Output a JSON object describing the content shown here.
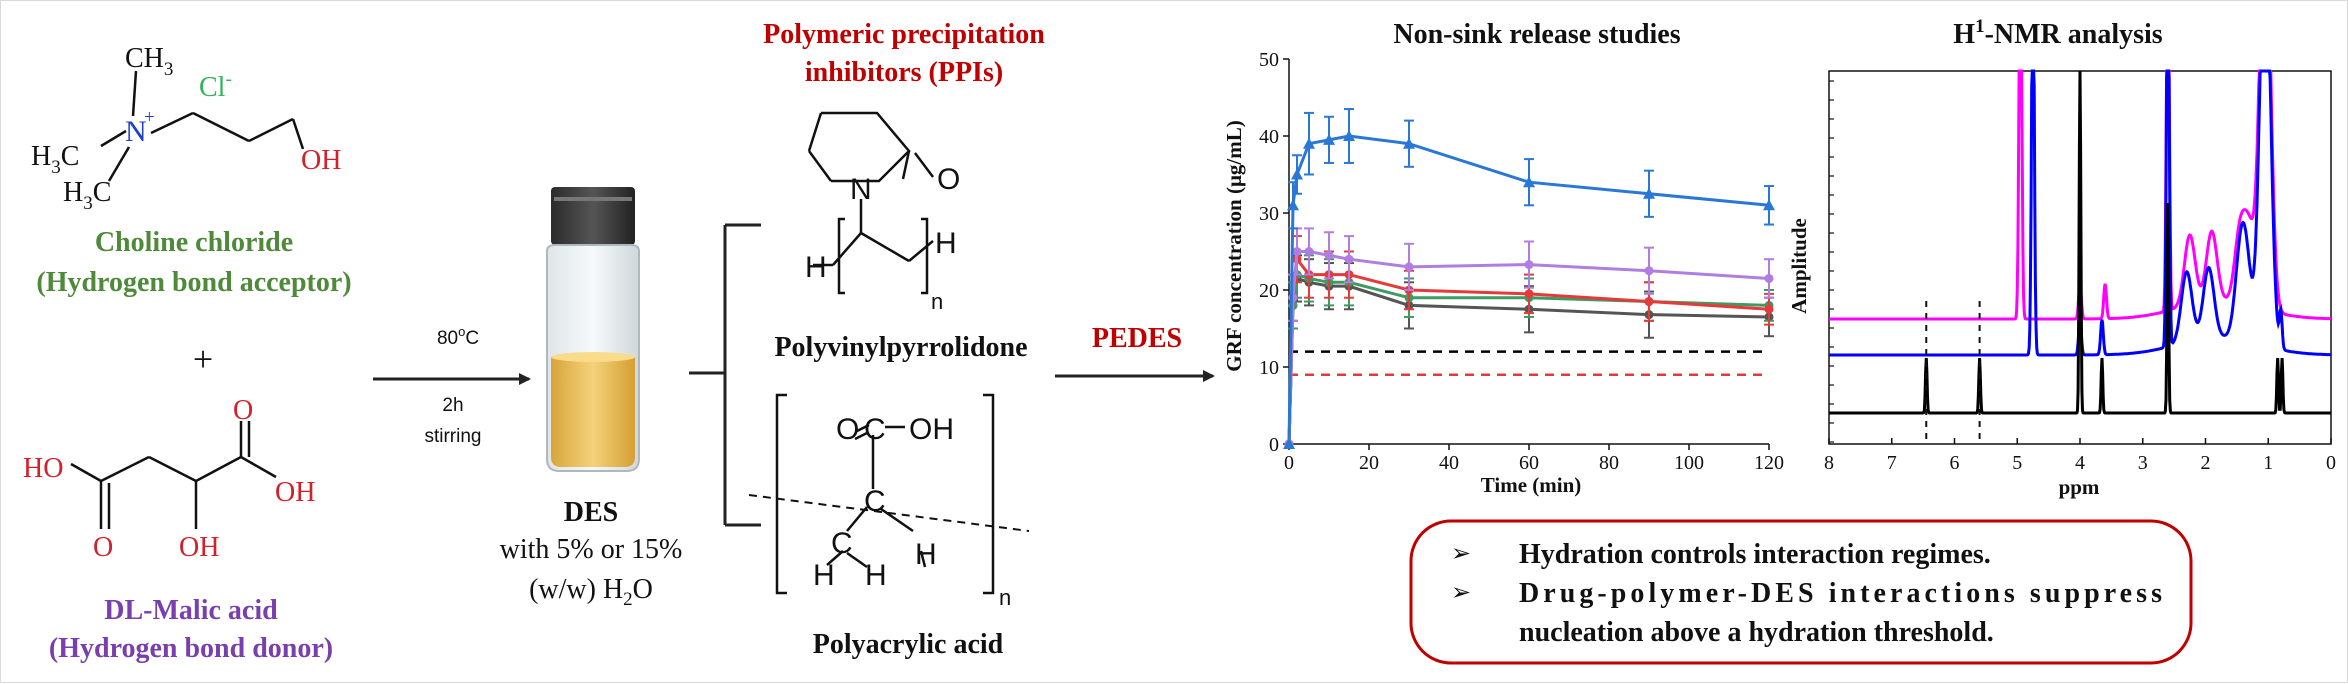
{
  "choline": {
    "ch3_top": "CH",
    "ch3_top_sub": "3",
    "n_plus": "N",
    "n_charge": "+",
    "h3c_left": "H",
    "h3c_left_sub": "3",
    "h3c_left_c": "C",
    "h3c_bottom": "H",
    "h3c_bottom_sub": "3",
    "h3c_bottom_c": "C",
    "oh": "OH",
    "cl": "Cl",
    "cl_charge": "-",
    "name": "Choline chloride",
    "role": "(Hydrogen bond acceptor)"
  },
  "plus": "+",
  "malic": {
    "ho_left": "HO",
    "o1": "O",
    "o2": "O",
    "oh_right": "OH",
    "oh_bottom": "OH",
    "name": "DL-Malic acid",
    "role": "(Hydrogen bond donor)"
  },
  "step1": {
    "temp": "80",
    "temp_sup": "o",
    "temp_unit": "C",
    "time": "2h",
    "action": "stirring"
  },
  "des": {
    "label": "DES",
    "line2": "with 5% or 15%",
    "line3a": "(w/w) H",
    "line3_sub": "2",
    "line3b": "O"
  },
  "ppi": {
    "title_line1": "Polymeric precipitation",
    "title_line2": "inhibitors (PPIs)",
    "pvp_o": "O",
    "pvp_n": "N",
    "pvp_h_left": "H",
    "pvp_h_right": "H",
    "pvp_n_sub": "n",
    "pvp_name": "Polyvinylpyrrolidone",
    "paa_o": "O",
    "paa_oh": "OH",
    "paa_c1": "C",
    "paa_c2": "C",
    "paa_c3": "C",
    "paa_h1": "H",
    "paa_h2": "H",
    "paa_h3": "H",
    "paa_n_sub": "n",
    "paa_name": "Polyacrylic acid"
  },
  "pedes": "PEDES",
  "release_chart": {
    "title": "Non-sink release studies",
    "ylabel": "GRF concentration (μg/mL)",
    "xlabel": "Time (min)"
  },
  "nmr_chart": {
    "title_h": "H",
    "title_sup": "1",
    "title_rest": "-NMR analysis",
    "ylabel": "Amplitude",
    "xlabel": "ppm"
  },
  "conclusions": {
    "bullet": "➢",
    "item1": "Hydration controls interaction regimes.",
    "item2_line1": "Drug-polymer-DES interactions suppress",
    "item2_line2": "nucleation above a hydration threshold."
  },
  "colors": {
    "green": "#4e8a3a",
    "purple": "#7a3fae",
    "red": "#c00000",
    "blue_n": "#1d3fd0",
    "green_cl": "#33b35a",
    "o_red": "#d4202a"
  },
  "chart_data": [
    {
      "type": "line",
      "title": "Non-sink release studies",
      "xlabel": "Time (min)",
      "ylabel": "GRF concentration (μg/mL)",
      "xlim": [
        0,
        120
      ],
      "ylim": [
        0,
        50
      ],
      "xticks": [
        0,
        20,
        40,
        60,
        80,
        100,
        120
      ],
      "yticks": [
        0,
        10,
        20,
        30,
        40,
        50
      ],
      "grid": false,
      "series": [
        {
          "color": "#2a78d6",
          "marker": "triangle",
          "x": [
            0,
            1,
            2,
            5,
            10,
            15,
            30,
            60,
            90,
            120
          ],
          "y": [
            0,
            31,
            35,
            39,
            39.5,
            40,
            39,
            34,
            32.5,
            31
          ],
          "err": [
            0,
            3,
            2.5,
            4,
            3,
            3.5,
            3,
            3,
            3,
            2.5
          ]
        },
        {
          "color": "#b07ee0",
          "marker": "circle",
          "x": [
            0,
            1,
            2,
            5,
            10,
            15,
            30,
            60,
            90,
            120
          ],
          "y": [
            0,
            19,
            25,
            25,
            24.5,
            24,
            23,
            23.3,
            22.5,
            21.5
          ],
          "err": [
            0,
            3,
            3,
            3,
            3,
            3,
            3,
            3,
            3,
            2.5
          ]
        },
        {
          "color": "#e53a3a",
          "marker": "circle",
          "x": [
            0,
            1,
            2,
            5,
            10,
            15,
            30,
            60,
            90,
            120
          ],
          "y": [
            0,
            19,
            24,
            22,
            22,
            22,
            20,
            19.5,
            18.5,
            17.5
          ],
          "err": [
            0,
            3,
            3,
            3,
            3,
            3,
            2.5,
            2.5,
            2.5,
            2
          ]
        },
        {
          "color": "#3e9a62",
          "marker": "circle",
          "x": [
            0,
            1,
            2,
            5,
            10,
            15,
            30,
            60,
            90,
            120
          ],
          "y": [
            0,
            18,
            22,
            21.5,
            21,
            21,
            19,
            19,
            18.5,
            18
          ],
          "err": [
            0,
            3,
            3,
            3,
            3,
            3,
            2.5,
            2.5,
            2.5,
            2
          ]
        },
        {
          "color": "#555555",
          "marker": "circle",
          "x": [
            0,
            1,
            2,
            5,
            10,
            15,
            30,
            60,
            90,
            120
          ],
          "y": [
            0,
            18,
            21.5,
            21,
            20.5,
            20.5,
            18,
            17.5,
            16.8,
            16.5
          ],
          "err": [
            0,
            3,
            3,
            3,
            3,
            3,
            3,
            3,
            3,
            2.5
          ]
        }
      ],
      "reference_lines": [
        {
          "y": 12,
          "color": "#000000",
          "style": "dashed"
        },
        {
          "y": 9,
          "color": "#e53a3a",
          "style": "dashed"
        }
      ]
    },
    {
      "type": "line",
      "title": "H1-NMR analysis",
      "xlabel": "ppm",
      "ylabel": "Amplitude",
      "xlim": [
        8,
        0
      ],
      "x_reversed": true,
      "xticks": [
        8,
        7,
        6,
        5,
        4,
        3,
        2,
        1,
        0
      ],
      "series": [
        {
          "color": "#ff00ff",
          "offset": 2,
          "peaks_ppm": [
            4.95,
            4.0,
            3.6,
            2.6,
            2.25,
            1.9,
            1.45,
            1.3,
            1.05
          ]
        },
        {
          "color": "#0000ff",
          "offset": 1,
          "peaks_ppm": [
            4.75,
            4.0,
            3.65,
            2.6,
            2.3,
            1.95,
            1.45,
            1.35,
            1.05,
            0.8
          ]
        },
        {
          "color": "#000000",
          "offset": 0,
          "peaks_ppm": [
            6.45,
            5.6,
            4.0,
            3.65,
            2.6,
            0.85,
            0.78
          ]
        }
      ],
      "reference_lines_ppm": [
        6.45,
        5.6
      ]
    }
  ]
}
